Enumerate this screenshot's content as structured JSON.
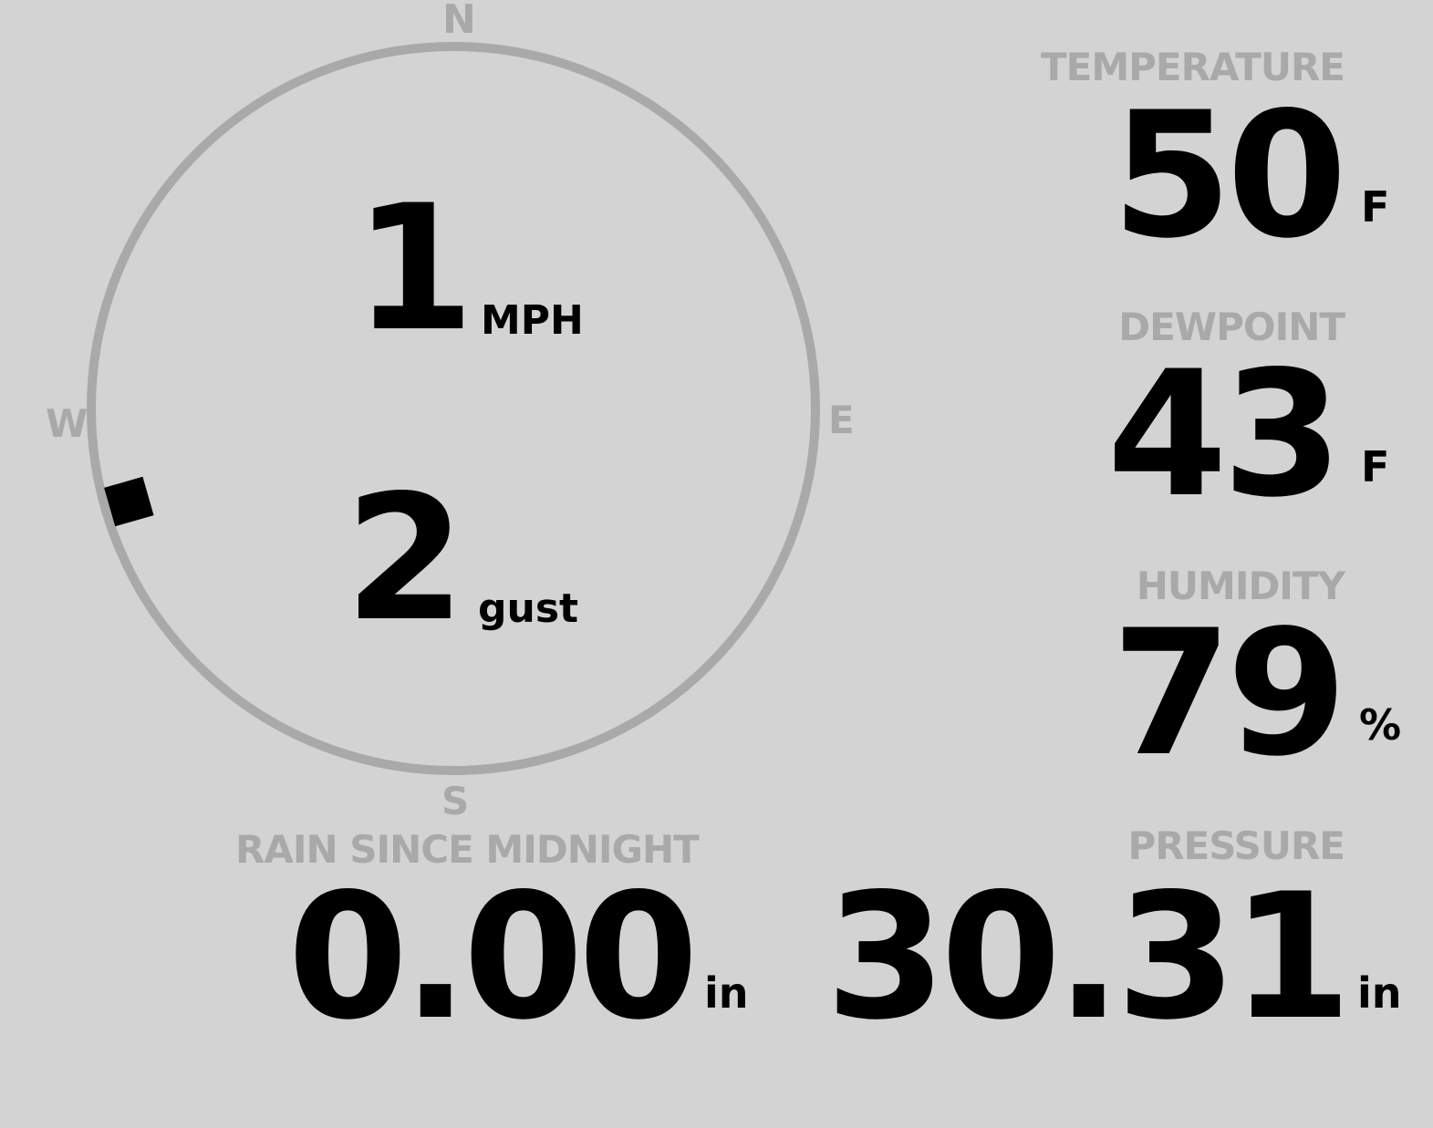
{
  "wind": {
    "speed": "1",
    "speed_unit": "MPH",
    "gust": "2",
    "gust_unit": "gust",
    "direction_deg": 254,
    "cardinals": {
      "n": "N",
      "e": "E",
      "s": "S",
      "w": "W"
    }
  },
  "temperature": {
    "label": "TEMPERATURE",
    "value": "50",
    "unit": "F"
  },
  "dewpoint": {
    "label": "DEWPOINT",
    "value": "43",
    "unit": "F"
  },
  "humidity": {
    "label": "HUMIDITY",
    "value": "79",
    "unit": "%"
  },
  "rain": {
    "label": "RAIN SINCE MIDNIGHT",
    "value": "0.00",
    "unit": "in"
  },
  "pressure": {
    "label": "PRESSURE",
    "value": "30.31",
    "unit": "in"
  },
  "colors": {
    "background": "#d3d3d3",
    "label": "#a9a9a9",
    "value": "#000000"
  }
}
